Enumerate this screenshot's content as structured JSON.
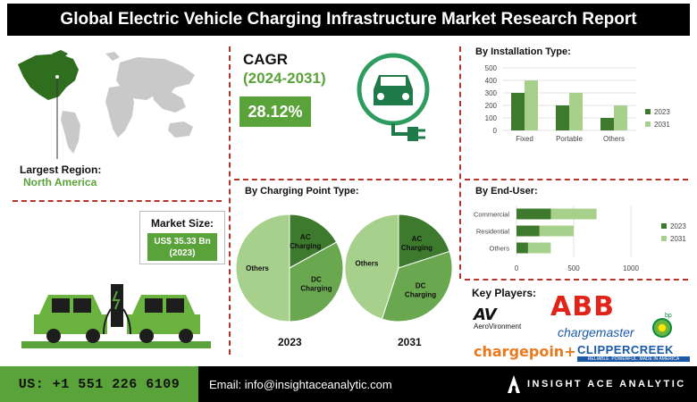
{
  "title": "Global Electric Vehicle Charging Infrastructure Market Research Report",
  "region": {
    "label": "Largest Region:",
    "value": "North America"
  },
  "market_size": {
    "label": "Market Size:",
    "value_line1": "US$ 35.33 Bn",
    "value_line2": "(2023)"
  },
  "cagr": {
    "label": "CAGR",
    "period": "(2024-2031)",
    "value": "28.12%"
  },
  "charging_point": {
    "title": "By Charging Point Type:",
    "year1": "2023",
    "year2": "2031"
  },
  "installation": {
    "title": "By Installation Type:"
  },
  "end_user": {
    "title": "By End-User:"
  },
  "key_players": {
    "title": "Key Players:",
    "logos": [
      "AV",
      "AeroVironment",
      "ABB",
      "chargemaster",
      "bp",
      "chargepoin+",
      "CLIPPERCREEK",
      "RELIABLE. POWERFUL. MADE IN AMERICA"
    ]
  },
  "footer": {
    "phone": "US: +1 551 226 6109",
    "email": "Email: info@insightaceanalytic.com",
    "brand": "INSIGHT ACE ANALYTIC"
  },
  "colors": {
    "dark_green": "#3d7a2e",
    "light_green": "#a8d08d",
    "mid_green": "#6aa84f",
    "red_dash": "#b5332a"
  },
  "chart_data": [
    {
      "type": "pie",
      "title": "2023",
      "slices": [
        {
          "label": "AC Charging",
          "value": 17
        },
        {
          "label": "DC Charging",
          "value": 33
        },
        {
          "label": "Others",
          "value": 50
        }
      ]
    },
    {
      "type": "pie",
      "title": "2031",
      "slices": [
        {
          "label": "AC Charging",
          "value": 20
        },
        {
          "label": "DC Charging",
          "value": 35
        },
        {
          "label": "Others",
          "value": 45
        }
      ]
    },
    {
      "type": "bar",
      "categories": [
        "Fixed",
        "Portable",
        "Others"
      ],
      "series": [
        {
          "name": "2023",
          "values": [
            300,
            200,
            100
          ]
        },
        {
          "name": "2031",
          "values": [
            400,
            300,
            200
          ]
        }
      ],
      "ylim": [
        0,
        500
      ],
      "yticks": [
        "0",
        "100",
        "200",
        "300",
        "400",
        "500"
      ]
    },
    {
      "type": "bar",
      "orientation": "horizontal",
      "categories": [
        "Commercial",
        "Residential",
        "Others"
      ],
      "series": [
        {
          "name": "2023",
          "values": [
            300,
            200,
            100
          ]
        },
        {
          "name": "2031",
          "values": [
            700,
            500,
            300
          ]
        }
      ],
      "xlim": [
        0,
        1000
      ],
      "xticks": [
        "0",
        "500",
        "1000"
      ]
    }
  ]
}
